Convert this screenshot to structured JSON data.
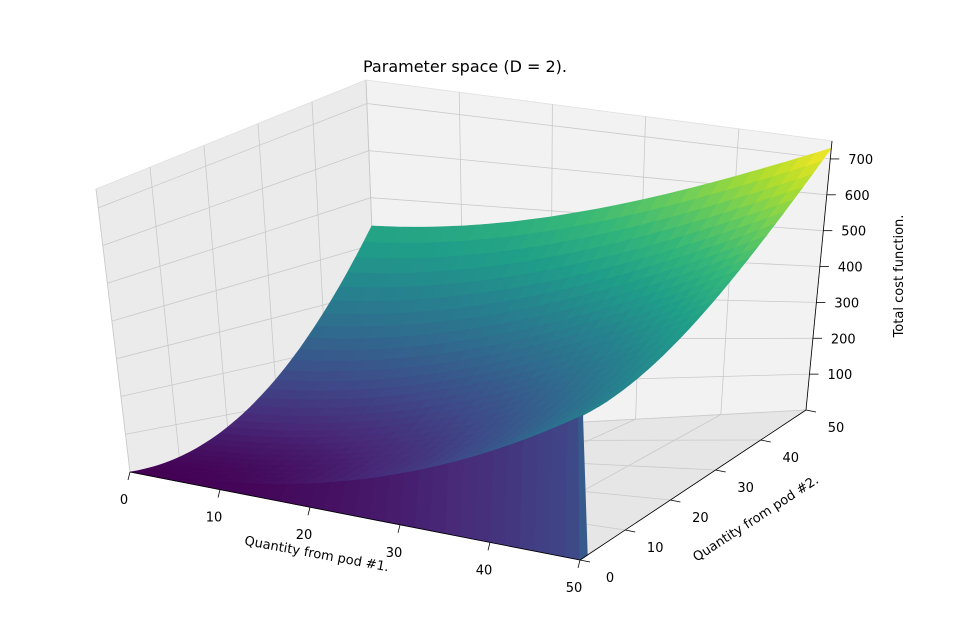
{
  "chart_data": {
    "type": "surface3d",
    "title": "Parameter space (D = 2).",
    "xlabel": "Quantity from pod #1.",
    "ylabel": "Quantity from pod #2.",
    "zlabel": "Total cost function.",
    "xlim": [
      0,
      50
    ],
    "ylim": [
      0,
      50
    ],
    "zlim": [
      0,
      750
    ],
    "xticks": [
      0,
      10,
      20,
      30,
      40,
      50
    ],
    "yticks": [
      0,
      10,
      20,
      30,
      40,
      50
    ],
    "zticks": [
      100,
      200,
      300,
      400,
      500,
      600,
      700
    ],
    "colormap": "viridis",
    "grid": true,
    "surface": {
      "description_free": false,
      "x_range": [
        0,
        50
      ],
      "y_range": [
        0,
        50
      ],
      "z_min": 0,
      "z_at_x0_y50": 440,
      "z_at_x50_y50": 730,
      "z_at_x50_y0": 290,
      "z_at_x0_y0": 0
    }
  }
}
